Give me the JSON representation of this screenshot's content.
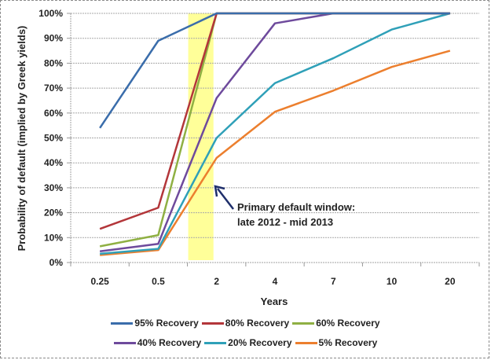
{
  "chart_data": {
    "type": "line",
    "title": "",
    "xlabel": "Years",
    "ylabel": "Probability of default (implied by Greek yields)",
    "categories": [
      "0.25",
      "0.5",
      "2",
      "4",
      "7",
      "10",
      "20"
    ],
    "yticks": [
      "0%",
      "10%",
      "20%",
      "30%",
      "40%",
      "50%",
      "60%",
      "70%",
      "80%",
      "90%",
      "100%"
    ],
    "ylim": [
      0,
      100
    ],
    "grid": true,
    "legend_position": "bottom",
    "series": [
      {
        "name": "95% Recovery",
        "color": "#3a6dab",
        "values": [
          54,
          89,
          100,
          100,
          100,
          100,
          100
        ]
      },
      {
        "name": "80% Recovery",
        "color": "#b3363a",
        "values": [
          13.5,
          22,
          100,
          100,
          100,
          100,
          100
        ]
      },
      {
        "name": "60% Recovery",
        "color": "#8fb043",
        "values": [
          6.5,
          11,
          100,
          100,
          100,
          100,
          100
        ]
      },
      {
        "name": "40% Recovery",
        "color": "#6e4a9c",
        "values": [
          4.5,
          7.5,
          66,
          96,
          100,
          100,
          100
        ]
      },
      {
        "name": "20% Recovery",
        "color": "#2fa0b8",
        "values": [
          3.5,
          5.5,
          50,
          72,
          82,
          93.5,
          100
        ]
      },
      {
        "name": "5% Recovery",
        "color": "#ec7f2e",
        "values": [
          3,
          5,
          42,
          60.5,
          69,
          78.5,
          85
        ]
      }
    ],
    "highlight": {
      "from_category": "0.5",
      "to_category": "2",
      "color": "#ffff99"
    },
    "annotation": {
      "lines": [
        "Primary default window:",
        "late 2012 - mid 2013"
      ],
      "arrow_color": "#1f2f6b"
    }
  }
}
